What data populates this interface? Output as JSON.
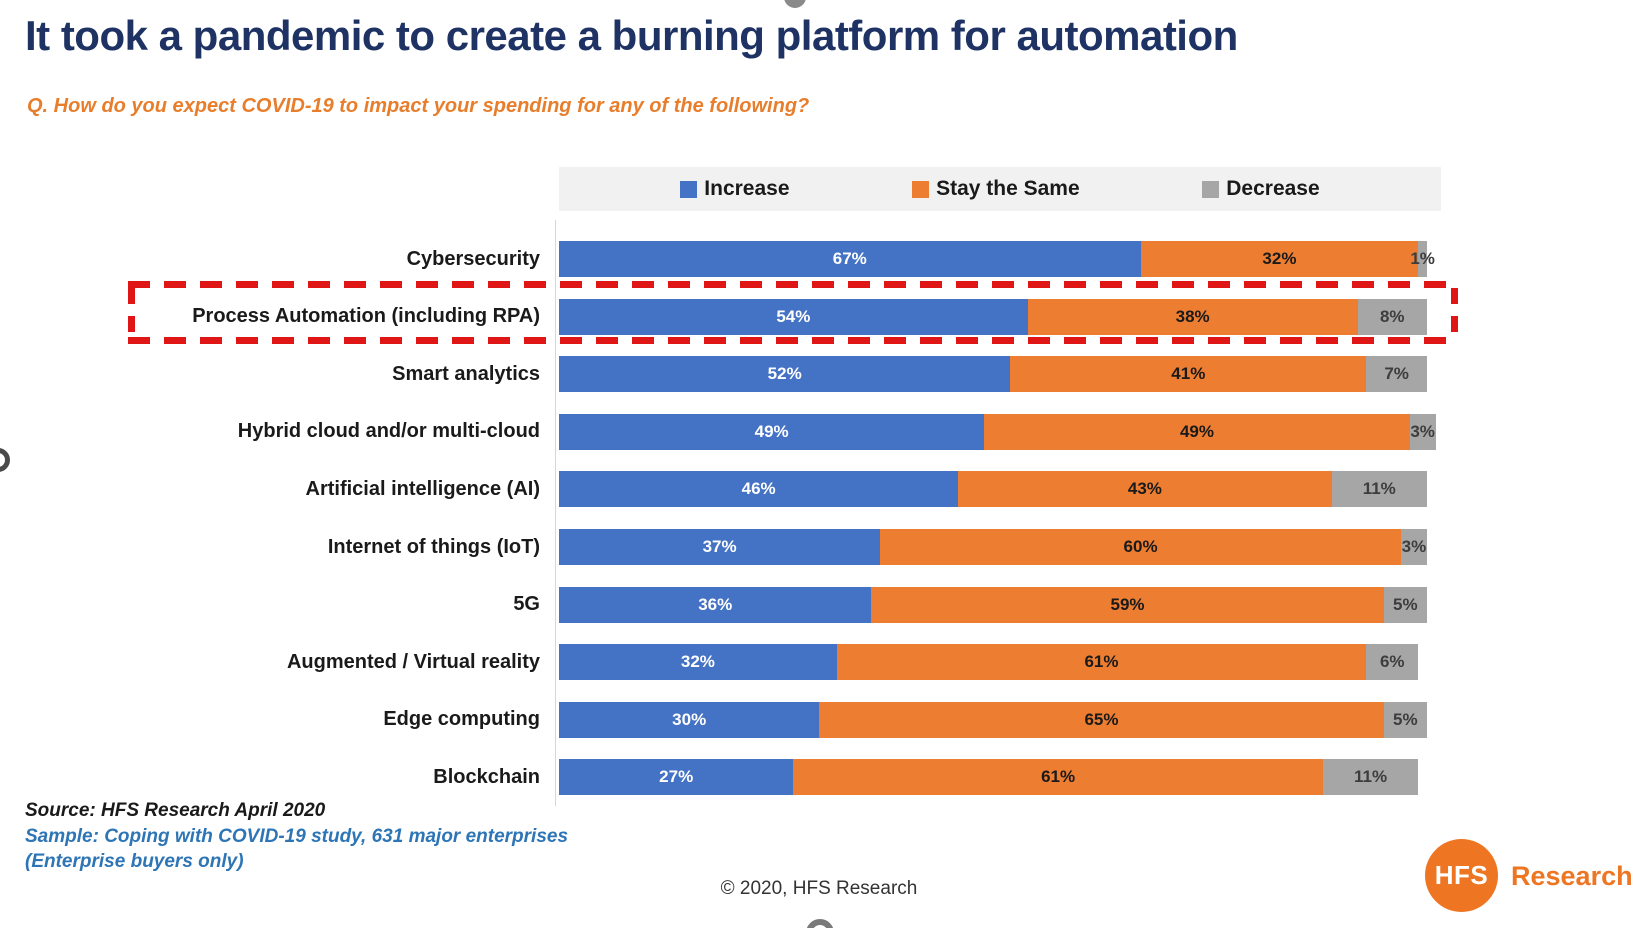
{
  "title": "It took a pandemic to create a burning platform for automation",
  "subtitle": "Q. How do you expect COVID-19 to impact your spending for any of the following?",
  "colors": {
    "increase": "#4472C4",
    "stay_the_same": "#ED7D31",
    "decrease": "#A6A6A6",
    "highlight_box": "#E01515",
    "title_navy": "#1E3264",
    "subtitle_orange": "#E87E2B",
    "sample_blue": "#2E75B6",
    "logo_orange": "#EE7623",
    "legend_band": "#F1F1F1"
  },
  "chart_data": {
    "type": "bar",
    "orientation": "horizontal",
    "stacked": true,
    "value_suffix": "%",
    "xlim": [
      0,
      100
    ],
    "legend_position": "top",
    "grid": false,
    "categories": [
      "Cybersecurity",
      "Process Automation (including RPA)",
      "Smart analytics",
      "Hybrid cloud and/or multi-cloud",
      "Artificial intelligence (AI)",
      "Internet of things (IoT)",
      "5G",
      "Augmented / Virtual reality",
      "Edge computing",
      "Blockchain"
    ],
    "series": [
      {
        "name": "Increase",
        "color": "#4472C4",
        "label_color": "#FFFFFF",
        "values": [
          67,
          54,
          52,
          49,
          46,
          37,
          36,
          32,
          30,
          27
        ]
      },
      {
        "name": "Stay the Same",
        "color": "#ED7D31",
        "label_color": "#1A1A1A",
        "values": [
          32,
          38,
          41,
          49,
          43,
          60,
          59,
          61,
          65,
          61
        ]
      },
      {
        "name": "Decrease",
        "color": "#A6A6A6",
        "label_color": "#3D3D3D",
        "values": [
          1,
          8,
          7,
          3,
          11,
          3,
          5,
          6,
          5,
          11
        ]
      }
    ],
    "highlighted_category": "Process Automation (including RPA)"
  },
  "footer": {
    "source_line1": "Source: HFS Research April 2020",
    "source_line2": "Sample: Coping with COVID-19 study, 631 major enterprises",
    "source_line3": "(Enterprise buyers only)",
    "copyright": "© 2020, HFS Research",
    "logo_circle_text": "HFS",
    "logo_text": "Research"
  }
}
